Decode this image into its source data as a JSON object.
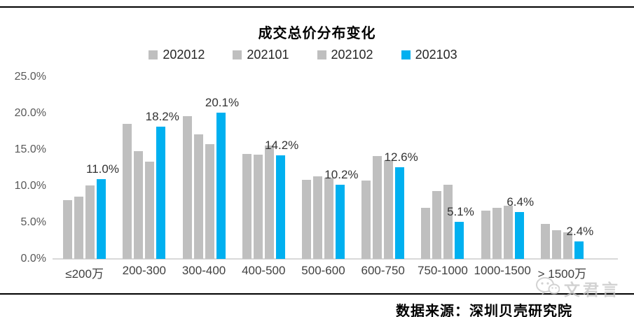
{
  "title": "成交总价分布变化",
  "colors": {
    "gray_series": "#bfbfbf",
    "blue_series": "#00b0f0",
    "axis_line": "#d9d9d9",
    "rule_line": "#000000",
    "watermark": "#c4c4c4"
  },
  "legend": [
    {
      "label": "202012",
      "color": "#bfbfbf"
    },
    {
      "label": "202101",
      "color": "#bfbfbf"
    },
    {
      "label": "202102",
      "color": "#bfbfbf"
    },
    {
      "label": "202103",
      "color": "#00b0f0"
    }
  ],
  "chart_data": {
    "type": "bar",
    "title": "成交总价分布变化",
    "categories": [
      "≤200万",
      "200-300",
      "300-400",
      "400-500",
      "500-600",
      "600-750",
      "750-1000",
      "1000-1500",
      "> 1500万"
    ],
    "series": [
      {
        "name": "202012",
        "color": "#bfbfbf",
        "values": [
          8.1,
          18.6,
          19.6,
          14.4,
          10.9,
          10.8,
          7.0,
          6.6,
          4.8
        ]
      },
      {
        "name": "202101",
        "color": "#bfbfbf",
        "values": [
          8.6,
          14.8,
          17.1,
          14.3,
          11.3,
          14.1,
          9.3,
          7.0,
          3.9
        ]
      },
      {
        "name": "202102",
        "color": "#bfbfbf",
        "values": [
          10.1,
          13.4,
          15.8,
          15.6,
          11.2,
          13.6,
          10.2,
          7.3,
          3.7
        ]
      },
      {
        "name": "202103",
        "color": "#00b0f0",
        "values": [
          11.0,
          18.2,
          20.1,
          14.2,
          10.2,
          12.6,
          5.1,
          6.4,
          2.4
        ],
        "data_labels": [
          "11.0%",
          "18.2%",
          "20.1%",
          "14.2%",
          "10.2%",
          "12.6%",
          "5.1%",
          "6.4%",
          "2.4%"
        ]
      }
    ],
    "labeled_series": "202103",
    "xlabel": "",
    "ylabel": "",
    "ylim": [
      0,
      25
    ],
    "y_ticks": [
      {
        "label": "25.0%",
        "value": 25
      },
      {
        "label": "20.0%",
        "value": 20
      },
      {
        "label": "15.0%",
        "value": 15
      },
      {
        "label": "10.0%",
        "value": 10
      },
      {
        "label": "5.0%",
        "value": 5
      },
      {
        "label": "0.0%",
        "value": 0
      }
    ],
    "grid": false,
    "legend_position": "top"
  },
  "source_note": "数据来源：深圳贝壳研究院",
  "watermark": {
    "icon": "wechat-icon",
    "text": "文君言"
  }
}
